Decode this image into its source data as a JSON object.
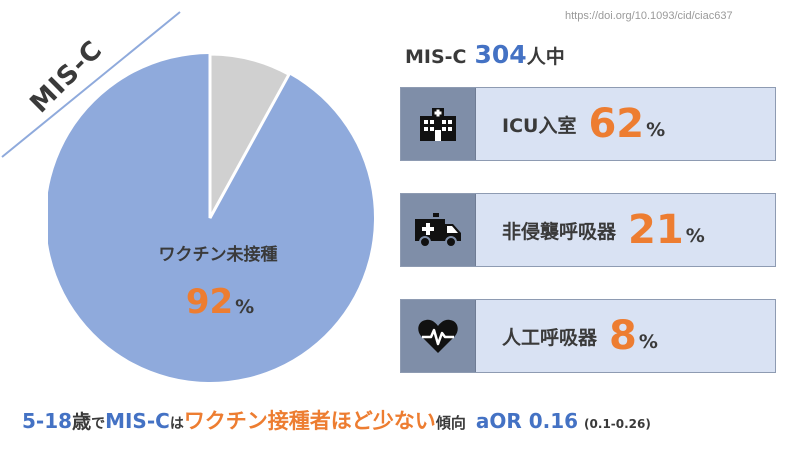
{
  "source_url": "https://doi.org/10.1093/cid/ciac637",
  "corner_label": "MIS-C",
  "pie": {
    "label": "ワクチン未接種",
    "value": "92",
    "unit": "%",
    "unvaccinated_fraction": 0.92,
    "color_main": "#8faadc",
    "color_other": "#d0d0d0"
  },
  "header": {
    "prefix": "MIS-C",
    "count": "304",
    "suffix": "人中"
  },
  "rows": [
    {
      "icon": "hospital-icon",
      "label": "ICU入室",
      "value": "62",
      "unit": "%"
    },
    {
      "icon": "ambulance-icon",
      "label": "非侵襲呼吸器",
      "value": "21",
      "unit": "%"
    },
    {
      "icon": "heart-pulse-icon",
      "label": "人工呼吸器",
      "value": "8",
      "unit": "%"
    }
  ],
  "bottom": {
    "age": "5-18",
    "sai": "歳",
    "de": "で",
    "misc": "MIS-C",
    "wa": "は",
    "highlight": "ワクチン接種者ほど少ない",
    "trend": "傾向",
    "aor": "aOR 0.16",
    "ci": "(0.1-0.26)"
  },
  "colors": {
    "accent_orange": "#ed7d31",
    "accent_blue": "#4472c4",
    "row_bg": "#d9e2f3",
    "icon_bg": "#7f8ea8"
  }
}
